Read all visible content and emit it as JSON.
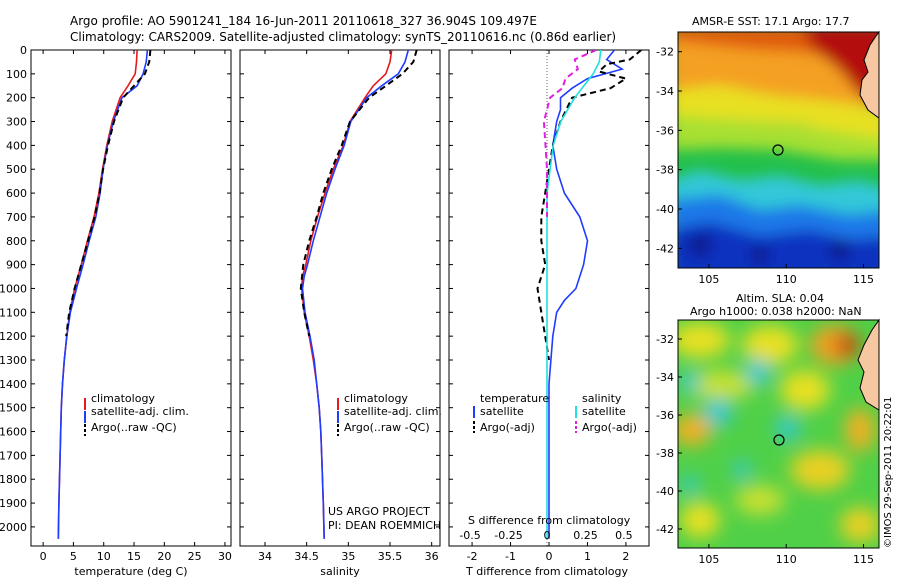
{
  "header": {
    "line1": "Argo profile: AO 5901241_184 16-Jun-2011 20110618_327 36.904S 109.497E",
    "line2": "Climatology: CARS2009. Satellite-adjusted climatology: synTS_20110616.nc (0.86d earlier)"
  },
  "sst_title": "AMSR-E SST: 17.1  Argo: 17.7",
  "sla_title1": "Altim. SLA: 0.04",
  "sla_title2": "Argo h1000: 0.038 h2000: NaN",
  "credit": "©IMOS 29-Sep-2011 20:22:01",
  "project": {
    "line1": "US ARGO PROJECT",
    "line2": "PI: DEAN ROEMMICH"
  },
  "diff_s_label": "S difference from climatology",
  "colors": {
    "clim": "#e41a1c",
    "sat": "#1f3cff",
    "argo": "#000000",
    "sat_s": "#20e0e0",
    "argo_s": "#e020e0"
  },
  "chart_data": [
    {
      "type": "line",
      "xlabel": "temperature (deg C)",
      "xlim": [
        -2,
        31
      ],
      "xticks": [
        0,
        5,
        10,
        15,
        20,
        25,
        30
      ],
      "ylim": [
        2080,
        0
      ],
      "yticks": [
        0,
        100,
        200,
        300,
        400,
        500,
        600,
        700,
        800,
        900,
        1000,
        1100,
        1200,
        1300,
        1400,
        1500,
        1600,
        1700,
        1800,
        1900,
        2000
      ],
      "legend": [
        "climatology",
        "satellite-adj. clim.",
        "Argo(..raw -QC)"
      ],
      "series": [
        {
          "name": "climatology",
          "color": "#e41a1c",
          "style": "solid",
          "depth": [
            0,
            50,
            100,
            150,
            200,
            300,
            400,
            500,
            600,
            700,
            800,
            900,
            1000,
            1100,
            1200,
            1300,
            1400,
            1500,
            1600,
            1700,
            1800,
            1900,
            2050
          ],
          "values": [
            15.5,
            15.4,
            15.2,
            14.0,
            12.7,
            11.4,
            10.5,
            9.8,
            9.2,
            8.4,
            7.3,
            6.3,
            5.2,
            4.4,
            3.9,
            3.5,
            3.2,
            3.0,
            2.9,
            2.8,
            2.7,
            2.6,
            2.5
          ]
        },
        {
          "name": "satellite-adj. clim.",
          "color": "#1f3cff",
          "style": "solid",
          "depth": [
            0,
            50,
            100,
            150,
            200,
            300,
            400,
            500,
            600,
            700,
            800,
            900,
            1000,
            1100,
            1200,
            1300,
            1400,
            1500,
            1600,
            1700,
            1800,
            1900,
            2050
          ],
          "values": [
            17.2,
            17.0,
            16.5,
            15.5,
            13.0,
            11.6,
            10.6,
            9.9,
            9.4,
            8.7,
            7.6,
            6.6,
            5.5,
            4.5,
            3.9,
            3.5,
            3.2,
            3.0,
            2.9,
            2.8,
            2.7,
            2.6,
            2.5
          ]
        },
        {
          "name": "Argo(..raw -QC)",
          "color": "#000000",
          "style": "dashed",
          "depth": [
            0,
            50,
            100,
            150,
            200,
            300,
            400,
            500,
            600,
            700,
            800,
            900,
            1000,
            1100,
            1200
          ],
          "values": [
            17.7,
            17.5,
            16.8,
            15.0,
            13.2,
            11.7,
            10.7,
            9.9,
            9.3,
            8.5,
            7.4,
            6.3,
            5.2,
            4.3,
            3.8
          ]
        }
      ]
    },
    {
      "type": "line",
      "xlabel": "salinity",
      "xlim": [
        33.7,
        36.1
      ],
      "xticks": [
        34,
        34.5,
        35,
        35.5,
        36
      ],
      "ylim": [
        2080,
        0
      ],
      "legend": [
        "climatology",
        "satellite-adj. clim.",
        "Argo(..raw -QC)"
      ],
      "series": [
        {
          "name": "climatology",
          "color": "#e41a1c",
          "style": "solid",
          "depth": [
            0,
            50,
            100,
            150,
            200,
            300,
            400,
            500,
            600,
            700,
            800,
            900,
            950,
            1000,
            1100,
            1200,
            1300,
            1400,
            1500,
            1600,
            1700,
            1800,
            1900,
            2050
          ],
          "values": [
            35.52,
            35.5,
            35.45,
            35.3,
            35.2,
            35.02,
            34.94,
            34.82,
            34.72,
            34.63,
            34.55,
            34.49,
            34.45,
            34.44,
            34.47,
            34.53,
            34.58,
            34.62,
            34.65,
            34.67,
            34.68,
            34.69,
            34.7,
            34.71
          ]
        },
        {
          "name": "satellite-adj. clim.",
          "color": "#1f3cff",
          "style": "solid",
          "depth": [
            0,
            50,
            100,
            150,
            200,
            300,
            400,
            500,
            600,
            700,
            800,
            900,
            950,
            1000,
            1100,
            1200,
            1300,
            1400,
            1500,
            1600,
            1700,
            1800,
            1900,
            2050
          ],
          "values": [
            35.72,
            35.68,
            35.6,
            35.4,
            35.22,
            35.03,
            34.95,
            34.84,
            34.74,
            34.66,
            34.58,
            34.51,
            34.47,
            34.45,
            34.48,
            34.54,
            34.59,
            34.62,
            34.65,
            34.67,
            34.68,
            34.69,
            34.7,
            34.71
          ]
        },
        {
          "name": "Argo(..raw -QC)",
          "color": "#000000",
          "style": "dashed",
          "depth": [
            0,
            50,
            100,
            150,
            200,
            300,
            400,
            500,
            600,
            700,
            800,
            900,
            1000,
            1100,
            1200
          ],
          "values": [
            35.82,
            35.78,
            35.65,
            35.45,
            35.25,
            35.02,
            34.92,
            34.8,
            34.7,
            34.62,
            34.53,
            34.46,
            34.43,
            34.47,
            34.53
          ]
        }
      ]
    },
    {
      "type": "line",
      "xlabel": "T difference from climatology",
      "xlim": [
        -2.6,
        2.6
      ],
      "xticks": [
        -2,
        -1,
        0,
        1,
        2
      ],
      "x2ticks": [
        -0.5,
        -0.25,
        0,
        0.25,
        0.5
      ],
      "ylim": [
        2080,
        0
      ],
      "legend": [
        "temperature",
        "satellite",
        "Argo(-adj)",
        "salinity",
        "satellite",
        "Argo(-adj)"
      ],
      "series": [
        {
          "name": "satellite",
          "group": "temperature",
          "color": "#1f3cff",
          "style": "solid",
          "depth": [
            0,
            40,
            80,
            120,
            160,
            200,
            250,
            300,
            400,
            500,
            600,
            700,
            800,
            900,
            1000,
            1050,
            1100,
            1200,
            1300,
            1400,
            1600,
            2050
          ],
          "values": [
            1.7,
            1.5,
            1.9,
            1.0,
            0.6,
            0.3,
            0.3,
            0.2,
            0.1,
            0.2,
            0.4,
            0.8,
            1.0,
            0.9,
            0.7,
            0.4,
            0.2,
            0.1,
            0.05,
            0.0,
            0.0,
            0.0
          ]
        },
        {
          "name": "Argo(-adj)",
          "group": "temperature",
          "color": "#000000",
          "style": "dashed",
          "depth": [
            0,
            40,
            60,
            90,
            120,
            160,
            200,
            300,
            400,
            500,
            600,
            700,
            800,
            900,
            1000,
            1100,
            1200,
            1300
          ],
          "values": [
            2.4,
            2.1,
            1.5,
            1.3,
            2.0,
            1.6,
            0.6,
            0.3,
            0.1,
            0.0,
            -0.1,
            -0.2,
            -0.2,
            -0.1,
            -0.3,
            -0.2,
            -0.1,
            0.0
          ]
        },
        {
          "name": "satellite",
          "group": "salinity",
          "color": "#20e0e0",
          "style": "solid",
          "depth": [
            0,
            50,
            100,
            200,
            300,
            400,
            500,
            600,
            700,
            800,
            900,
            1000,
            1200,
            1500,
            2050
          ],
          "values": [
            0.35,
            0.34,
            0.3,
            0.18,
            0.09,
            0.04,
            0.02,
            0.0,
            0.0,
            0.0,
            0.0,
            0.0,
            0.0,
            0.0,
            0.0
          ]
        },
        {
          "name": "Argo(-adj)",
          "group": "salinity",
          "color": "#e020e0",
          "style": "dashed",
          "depth": [
            0,
            40,
            80,
            120,
            160,
            200,
            300,
            400,
            500,
            600,
            700
          ],
          "values": [
            0.32,
            0.18,
            0.2,
            0.12,
            0.1,
            0.02,
            -0.02,
            -0.01,
            0.0,
            0.0,
            0.0
          ]
        }
      ]
    },
    {
      "type": "heatmap",
      "title": "AMSR-E SST: 17.1  Argo: 17.7",
      "xlim": [
        103,
        116
      ],
      "ylim": [
        -43,
        -31
      ],
      "xticks": [
        105,
        110,
        115
      ],
      "yticks": [
        -32,
        -34,
        -36,
        -38,
        -40,
        -42
      ],
      "marker": {
        "lon": 109.5,
        "lat": -36.9
      }
    },
    {
      "type": "heatmap",
      "title": "Altim. SLA: 0.04",
      "xlim": [
        103,
        116
      ],
      "ylim": [
        -43,
        -31
      ],
      "xticks": [
        105,
        110,
        115
      ],
      "yticks": [
        -32,
        -34,
        -36,
        -38,
        -40,
        -42
      ],
      "marker": {
        "lon": 109.6,
        "lat": -36.9
      }
    }
  ]
}
